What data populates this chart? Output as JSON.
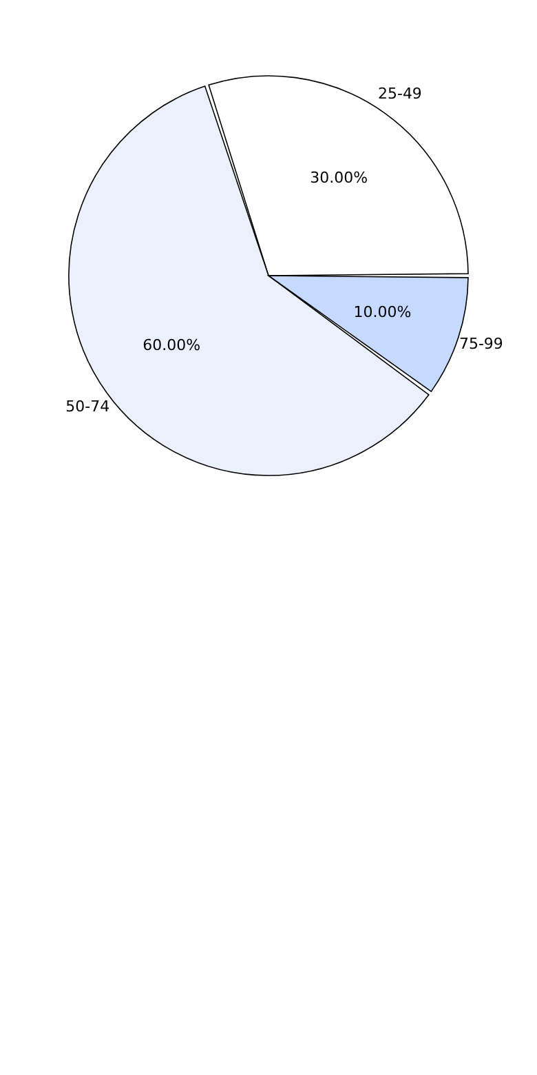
{
  "chart_data": {
    "type": "pie",
    "categories": [
      "25-49",
      "50-74",
      "75-99"
    ],
    "values": [
      30,
      60,
      10
    ],
    "colors": [
      "#ffffff",
      "#eaf1fd",
      "#c6d9fe"
    ],
    "value_labels": [
      "30.00%",
      "60.00%",
      "10.00%"
    ],
    "legend": false
  }
}
